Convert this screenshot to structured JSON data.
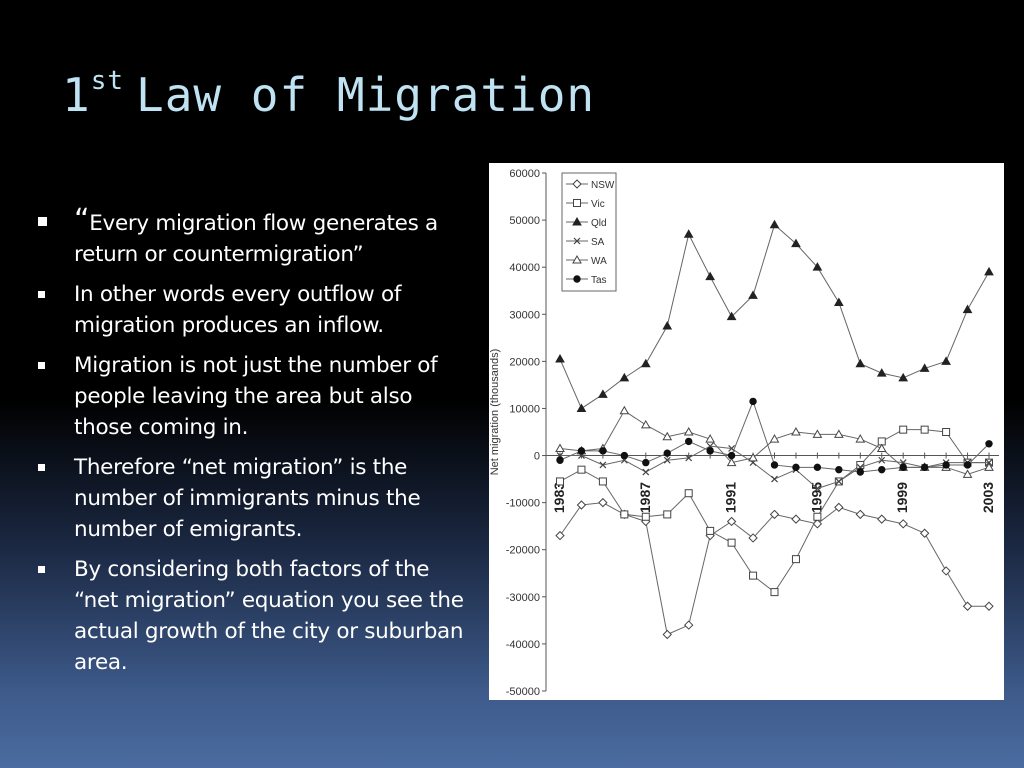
{
  "slide": {
    "title_main": "1",
    "title_sup": "st",
    "title_rest": "Law of Migration",
    "bullets": [
      {
        "quote_mark": "“",
        "text": "Every migration flow generates a return or countermigration”"
      },
      {
        "quote_mark": "",
        "text": "In other words every outflow of migration produces an inflow."
      },
      {
        "quote_mark": "",
        "text": "Migration is not just the number of people leaving the area but also those coming in."
      },
      {
        "quote_mark": "",
        "text": "Therefore “net migration” is the number of immigrants minus the number of emigrants."
      },
      {
        "quote_mark": "",
        "text": "By considering both factors of the “net migration” equation you see the actual growth of the city or suburban area."
      }
    ]
  },
  "chart_data": {
    "type": "line",
    "ylabel": "Net migration (thousands)",
    "ylim": [
      -50000,
      60000
    ],
    "yticks": [
      "60000",
      "50000",
      "40000",
      "30000",
      "20000",
      "10000",
      "0",
      "-10000",
      "-20000",
      "-30000",
      "-40000",
      "-50000"
    ],
    "x": [
      1983,
      1984,
      1985,
      1986,
      1987,
      1988,
      1989,
      1990,
      1991,
      1992,
      1993,
      1994,
      1995,
      1996,
      1997,
      1998,
      1999,
      2000,
      2001,
      2002,
      2003
    ],
    "xtick_labels": [
      "1983",
      "1987",
      "1991",
      "1995",
      "1999",
      "2003"
    ],
    "xtick_values": [
      1983,
      1987,
      1991,
      1995,
      1999,
      2003
    ],
    "legend_position": "top-left",
    "series": [
      {
        "name": "NSW",
        "marker": "diamond-open",
        "values": [
          -17000,
          -10500,
          -10000,
          -12500,
          -14000,
          -38000,
          -36000,
          -17000,
          -14000,
          -17500,
          -12500,
          -13500,
          -14500,
          -11000,
          -12500,
          -13500,
          -14500,
          -16500,
          -24500,
          -32000,
          -32000
        ]
      },
      {
        "name": "Vic",
        "marker": "square-open",
        "values": [
          -5500,
          -3000,
          -5500,
          -12500,
          -13000,
          -12500,
          -8000,
          -16000,
          -18500,
          -25500,
          -29000,
          -22000,
          -13000,
          -5500,
          -2000,
          3000,
          5500,
          5500,
          5000,
          -1500,
          -1500
        ]
      },
      {
        "name": "Qld",
        "marker": "triangle-filled",
        "values": [
          20500,
          10000,
          13000,
          16500,
          19500,
          27500,
          47000,
          38000,
          29500,
          34000,
          49000,
          45000,
          40000,
          32500,
          19500,
          17500,
          16500,
          18500,
          20000,
          31000,
          39000
        ]
      },
      {
        "name": "SA",
        "marker": "x",
        "values": [
          0,
          0,
          -2000,
          -1000,
          -3500,
          -1000,
          -500,
          2000,
          1500,
          -1500,
          -5000,
          -3000,
          -7000,
          -5500,
          -2500,
          -1000,
          -1500,
          -2500,
          -1500,
          -1500,
          -1500
        ]
      },
      {
        "name": "WA",
        "marker": "triangle-open",
        "values": [
          1500,
          1000,
          1500,
          9500,
          6500,
          4000,
          5000,
          3500,
          -1500,
          -500,
          3500,
          5000,
          4500,
          4500,
          3500,
          1500,
          -2500,
          -2500,
          -2500,
          -4000,
          -2500
        ]
      },
      {
        "name": "Tas",
        "marker": "circle-filled",
        "values": [
          -1000,
          1000,
          1000,
          0,
          -1500,
          500,
          3000,
          1000,
          0,
          11500,
          -2000,
          -2500,
          -2500,
          -3000,
          -3500,
          -3000,
          -2500,
          -2500,
          -2000,
          -2000,
          2500
        ]
      }
    ]
  }
}
